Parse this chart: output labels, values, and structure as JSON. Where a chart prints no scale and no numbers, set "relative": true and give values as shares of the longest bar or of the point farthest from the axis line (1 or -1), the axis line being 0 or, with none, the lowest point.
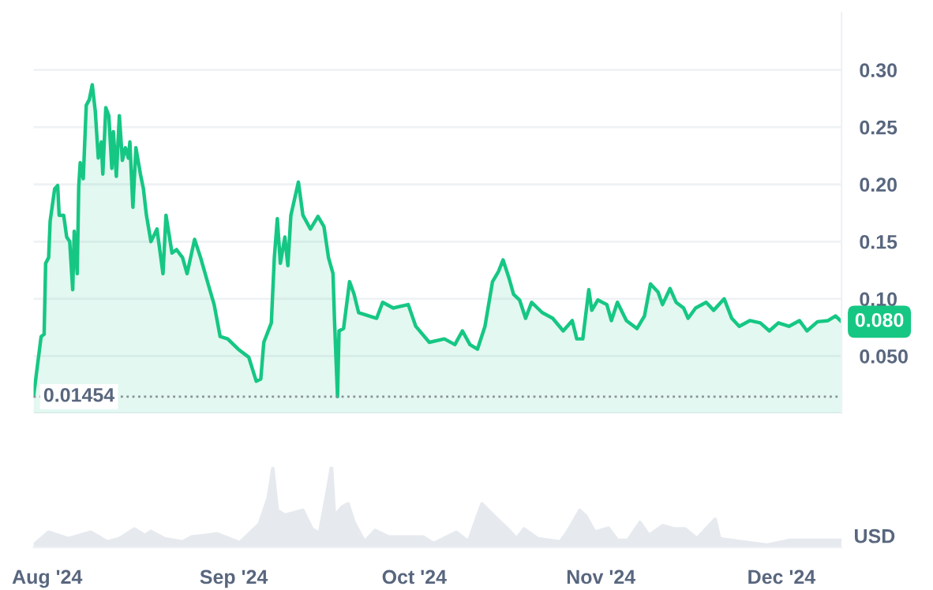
{
  "chart_data": [
    {
      "type": "area",
      "xlim": [
        "2024-07-29T18:00",
        "2024-12-11T00:00"
      ],
      "ylim": [
        0,
        0.35
      ],
      "yticks": [
        {
          "value": 0,
          "label": null
        },
        {
          "value": 0.05,
          "label": "0.050"
        },
        {
          "value": 0.1,
          "label": "0.10"
        },
        {
          "value": 0.15,
          "label": "0.15"
        },
        {
          "value": 0.2,
          "label": "0.20"
        },
        {
          "value": 0.25,
          "label": "0.25"
        },
        {
          "value": 0.3,
          "label": "0.30"
        }
      ],
      "tick_labels": "y",
      "grid": "y",
      "x": [
        "2024-07-29T18:00",
        "2024-07-31T00:00",
        "2024-07-31T12:00",
        "2024-07-31T18:00",
        "2024-08-01T06:00",
        "2024-08-01T12:00",
        "2024-08-02T06:00",
        "2024-08-02T18:00",
        "2024-08-03T00:00",
        "2024-08-03T18:00",
        "2024-08-04T06:00",
        "2024-08-04T18:00",
        "2024-08-05T06:00",
        "2024-08-05T12:00",
        "2024-08-06T00:00",
        "2024-08-06T06:00",
        "2024-08-06T12:00",
        "2024-08-07T00:00",
        "2024-08-07T12:00",
        "2024-08-08T00:00",
        "2024-08-08T12:00",
        "2024-08-09T00:00",
        "2024-08-09T12:00",
        "2024-08-10T00:00",
        "2024-08-10T06:00",
        "2024-08-10T18:00",
        "2024-08-11T06:00",
        "2024-08-11T18:00",
        "2024-08-12T00:00",
        "2024-08-12T12:00",
        "2024-08-13T00:00",
        "2024-08-13T12:00",
        "2024-08-14T00:00",
        "2024-08-14T12:00",
        "2024-08-14T18:00",
        "2024-08-15T06:00",
        "2024-08-15T18:00",
        "2024-08-16T12:00",
        "2024-08-17T00:00",
        "2024-08-17T12:00",
        "2024-08-18T06:00",
        "2024-08-19T06:00",
        "2024-08-20T06:00",
        "2024-08-20T18:00",
        "2024-08-21T18:00",
        "2024-08-22T12:00",
        "2024-08-23T12:00",
        "2024-08-24T06:00",
        "2024-08-25T12:00",
        "2024-08-26T12:00",
        "2024-08-27T18:00",
        "2024-08-28T18:00",
        "2024-08-29T18:00",
        "2024-08-31T00:00",
        "2024-09-01T18:00",
        "2024-09-03T12:00",
        "2024-09-04T18:00",
        "2024-09-05T12:00",
        "2024-09-06T00:00",
        "2024-09-07T06:00",
        "2024-09-07T18:00",
        "2024-09-08T06:00",
        "2024-09-08T18:00",
        "2024-09-09T12:00",
        "2024-09-10T00:00",
        "2024-09-10T12:00",
        "2024-09-11T18:00",
        "2024-09-12T12:00",
        "2024-09-13T18:00",
        "2024-09-15T00:00",
        "2024-09-16T00:00",
        "2024-09-16T18:00",
        "2024-09-17T12:00",
        "2024-09-17T18:00",
        "2024-09-18T06:00",
        "2024-09-18T12:00",
        "2024-09-19T06:00",
        "2024-09-20T06:00",
        "2024-09-21T00:00",
        "2024-09-21T18:00",
        "2024-09-24T18:00",
        "2024-09-25T18:00",
        "2024-09-27T12:00",
        "2024-09-30T00:00",
        "2024-10-01T06:00",
        "2024-10-03T12:00",
        "2024-10-06T00:00",
        "2024-10-07T18:00",
        "2024-10-09T00:00",
        "2024-10-10T06:00",
        "2024-10-11T12:00",
        "2024-10-12T18:00",
        "2024-10-14T00:00",
        "2024-10-15T00:00",
        "2024-10-15T18:00",
        "2024-10-16T18:00",
        "2024-10-17T12:00",
        "2024-10-18T12:00",
        "2024-10-19T12:00",
        "2024-10-20T12:00",
        "2024-10-22T06:00",
        "2024-10-24T00:00",
        "2024-10-25T18:00",
        "2024-10-27T06:00",
        "2024-10-28T00:00",
        "2024-10-29T00:00",
        "2024-10-30T00:00",
        "2024-10-30T12:00",
        "2024-10-31T12:00",
        "2024-11-02T00:00",
        "2024-11-02T18:00",
        "2024-11-03T18:00",
        "2024-11-05T06:00",
        "2024-11-07T00:00",
        "2024-11-08T06:00",
        "2024-11-09T06:00",
        "2024-11-10T12:00",
        "2024-11-11T06:00",
        "2024-11-12T12:00",
        "2024-11-13T12:00",
        "2024-11-14T18:00",
        "2024-11-15T12:00",
        "2024-11-16T18:00",
        "2024-11-18T12:00",
        "2024-11-19T18:00",
        "2024-11-21T12:00",
        "2024-11-22T18:00",
        "2024-11-24T00:00",
        "2024-11-25T18:00",
        "2024-11-27T12:00",
        "2024-11-29T00:00",
        "2024-11-30T12:00",
        "2024-12-02T06:00",
        "2024-12-04T00:00",
        "2024-12-05T06:00",
        "2024-12-07T00:00",
        "2024-12-08T18:00",
        "2024-12-10T00:00",
        "2024-12-11T00:00"
      ],
      "series": [
        {
          "color": "#16c784",
          "values": [
            0.015,
            0.067,
            0.069,
            0.131,
            0.136,
            0.168,
            0.196,
            0.199,
            0.173,
            0.173,
            0.154,
            0.15,
            0.108,
            0.159,
            0.122,
            0.198,
            0.219,
            0.205,
            0.269,
            0.274,
            0.287,
            0.264,
            0.223,
            0.237,
            0.209,
            0.267,
            0.26,
            0.214,
            0.246,
            0.207,
            0.26,
            0.221,
            0.232,
            0.223,
            0.237,
            0.18,
            0.232,
            0.209,
            0.196,
            0.173,
            0.15,
            0.161,
            0.122,
            0.173,
            0.14,
            0.143,
            0.136,
            0.122,
            0.152,
            0.136,
            0.113,
            0.095,
            0.067,
            0.065,
            0.056,
            0.049,
            0.028,
            0.03,
            0.062,
            0.079,
            0.136,
            0.17,
            0.131,
            0.154,
            0.129,
            0.173,
            0.202,
            0.173,
            0.161,
            0.172,
            0.163,
            0.136,
            0.122,
            0.081,
            0.01454,
            0.072,
            0.074,
            0.115,
            0.104,
            0.088,
            0.083,
            0.097,
            0.092,
            0.095,
            0.076,
            0.062,
            0.065,
            0.06,
            0.072,
            0.06,
            0.056,
            0.076,
            0.115,
            0.124,
            0.134,
            0.118,
            0.104,
            0.099,
            0.083,
            0.097,
            0.088,
            0.083,
            0.072,
            0.081,
            0.065,
            0.065,
            0.108,
            0.09,
            0.099,
            0.095,
            0.081,
            0.097,
            0.081,
            0.074,
            0.085,
            0.113,
            0.106,
            0.095,
            0.109,
            0.097,
            0.092,
            0.083,
            0.092,
            0.097,
            0.09,
            0.1,
            0.083,
            0.076,
            0.081,
            0.079,
            0.072,
            0.079,
            0.076,
            0.081,
            0.072,
            0.08,
            0.081,
            0.085,
            0.08
          ]
        }
      ],
      "ref_lines": [
        {
          "axis": "y",
          "value": 0.01454,
          "label": "0.01454",
          "color": "#8a8f98",
          "line_style": "dotted"
        }
      ],
      "annotations": [
        {
          "text": "0.080",
          "x": "2024-12-11T00:00",
          "y": 0.08
        }
      ]
    },
    {
      "type": "area",
      "relative": true,
      "xlim": [
        "2024-07-29T18:00",
        "2024-12-11T00:00"
      ],
      "xticks": [
        {
          "value": "2024-08-01",
          "label": "Aug '24"
        },
        {
          "value": "2024-09-01",
          "label": "Sep '24"
        },
        {
          "value": "2024-10-01",
          "label": "Oct '24"
        },
        {
          "value": "2024-11-01",
          "label": "Nov '24"
        },
        {
          "value": "2024-12-01",
          "label": "Dec '24"
        }
      ],
      "tick_labels": "x",
      "x": [
        "2024-07-29T18:00",
        "2024-08-01T06:00",
        "2024-08-04T12:00",
        "2024-08-08T06:00",
        "2024-08-11T00:00",
        "2024-08-13T00:00",
        "2024-08-15T12:00",
        "2024-08-17T06:00",
        "2024-08-18T06:00",
        "2024-08-20T12:00",
        "2024-08-23T12:00",
        "2024-08-25T00:00",
        "2024-08-29T06:00",
        "2024-09-02T00:00",
        "2024-09-05T06:00",
        "2024-09-06T18:00",
        "2024-09-07T12:00",
        "2024-09-08T06:00",
        "2024-09-09T12:00",
        "2024-09-12T12:00",
        "2024-09-14T00:00",
        "2024-09-15T06:00",
        "2024-09-16T18:00",
        "2024-09-17T06:00",
        "2024-09-17T18:00",
        "2024-09-19T00:00",
        "2024-09-20T00:00",
        "2024-09-21T00:00",
        "2024-09-22T18:00",
        "2024-09-24T12:00",
        "2024-09-26T18:00",
        "2024-10-02T12:00",
        "2024-10-04T06:00",
        "2024-10-08T00:00",
        "2024-10-10T00:00",
        "2024-10-11T12:00",
        "2024-10-12T06:00",
        "2024-10-14T06:00",
        "2024-10-16T12:00",
        "2024-10-18T00:00",
        "2024-10-19T06:00",
        "2024-10-21T12:00",
        "2024-10-25T06:00",
        "2024-10-26T12:00",
        "2024-10-28T12:00",
        "2024-10-29T12:00",
        "2024-10-31T00:00",
        "2024-11-02T06:00",
        "2024-11-03T18:00",
        "2024-11-05T12:00",
        "2024-11-07T12:00",
        "2024-11-09T00:00",
        "2024-11-11T06:00",
        "2024-11-13T06:00",
        "2024-11-15T00:00",
        "2024-11-17T00:00",
        "2024-11-20T00:00",
        "2024-11-20T18:00",
        "2024-11-24T12:00",
        "2024-11-28T12:00",
        "2024-12-02T12:00",
        "2024-12-05T00:00",
        "2024-12-08T18:00",
        "2024-12-11T00:00"
      ],
      "series": [
        {
          "color": "#e6eaef",
          "values": [
            0.03,
            0.19,
            0.11,
            0.19,
            0.07,
            0.11,
            0.23,
            0.15,
            0.2,
            0.11,
            0.07,
            0.13,
            0.17,
            0.06,
            0.29,
            0.62,
            0.98,
            0.46,
            0.4,
            0.46,
            0.23,
            0.17,
            0.78,
            1,
            0.39,
            0.5,
            0.54,
            0.31,
            0.07,
            0.21,
            0.13,
            0.13,
            0.05,
            0.19,
            0.07,
            0.39,
            0.54,
            0.39,
            0.23,
            0.11,
            0.23,
            0.11,
            0.07,
            0.2,
            0.46,
            0.39,
            0.19,
            0.24,
            0.09,
            0.09,
            0.31,
            0.15,
            0.27,
            0.23,
            0.23,
            0.11,
            0.35,
            0.11,
            0.07,
            0.03,
            0.09,
            0.09,
            0.09,
            0.09
          ]
        }
      ],
      "annotations": [
        "USD"
      ]
    }
  ]
}
